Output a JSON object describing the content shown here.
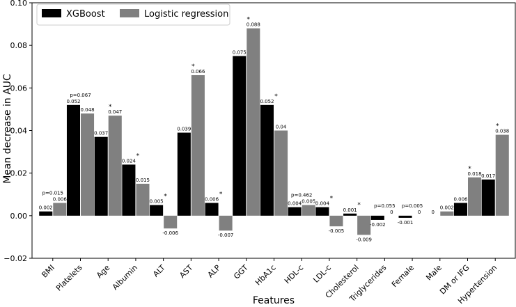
{
  "chart_data": {
    "type": "bar",
    "title": "",
    "xlabel": "Features",
    "ylabel": "Mean decrease in AUC",
    "ylim": [
      -0.02,
      0.1
    ],
    "yticks": [
      -0.02,
      0.0,
      0.02,
      0.04,
      0.06,
      0.08,
      0.1
    ],
    "ytick_labels": [
      "−0.02",
      "0.00",
      "0.02",
      "0.04",
      "0.06",
      "0.08",
      "0.10"
    ],
    "legend_position": "top-left",
    "categories": [
      "BMI",
      "Platelets",
      "Age",
      "Albumin",
      "ALT",
      "AST",
      "ALP",
      "GGT",
      "HbA1c",
      "HDL-c",
      "LDL-c",
      "Cholesterol",
      "Triglycerides",
      "Female",
      "Male",
      "DM or IFG",
      "Hypertension"
    ],
    "series": [
      {
        "name": "XGBoost",
        "color": "#000000",
        "values": [
          0.002,
          0.052,
          0.037,
          0.024,
          0.005,
          0.039,
          0.006,
          0.075,
          0.052,
          0.004,
          0.004,
          0.001,
          -0.002,
          -0.001,
          0,
          0.006,
          0.017
        ],
        "labels": [
          "0.002",
          "0.052",
          "0.037",
          "0.024",
          "0.005",
          "0.039",
          "0.006",
          "0.075",
          "0.052",
          "0.004",
          "0.004",
          "0.001",
          "-0.002",
          "-0.001",
          "0",
          "0.006",
          "0.017"
        ]
      },
      {
        "name": "Logistic regression",
        "color": "#808080",
        "values": [
          0.006,
          0.048,
          0.047,
          0.015,
          -0.006,
          0.066,
          -0.007,
          0.088,
          0.04,
          0.005,
          -0.005,
          -0.009,
          0,
          0,
          0.002,
          0.018,
          0.038
        ],
        "labels": [
          "0.006",
          "0.048",
          "0.047",
          "0.015",
          "-0.006",
          "0.066",
          "-0.007",
          "0.088",
          "0.04",
          "0.005",
          "-0.005",
          "-0.009",
          "0",
          "0",
          "0.002",
          "0.018",
          "0.038"
        ]
      }
    ],
    "annotations": [
      "p=0.015",
      "p=0.067",
      "*",
      "*",
      "*",
      "*",
      "*",
      "*",
      "*",
      "p=0.462",
      "*",
      "*",
      "p=0.055",
      "p=0.005",
      "",
      "*",
      "*"
    ]
  }
}
